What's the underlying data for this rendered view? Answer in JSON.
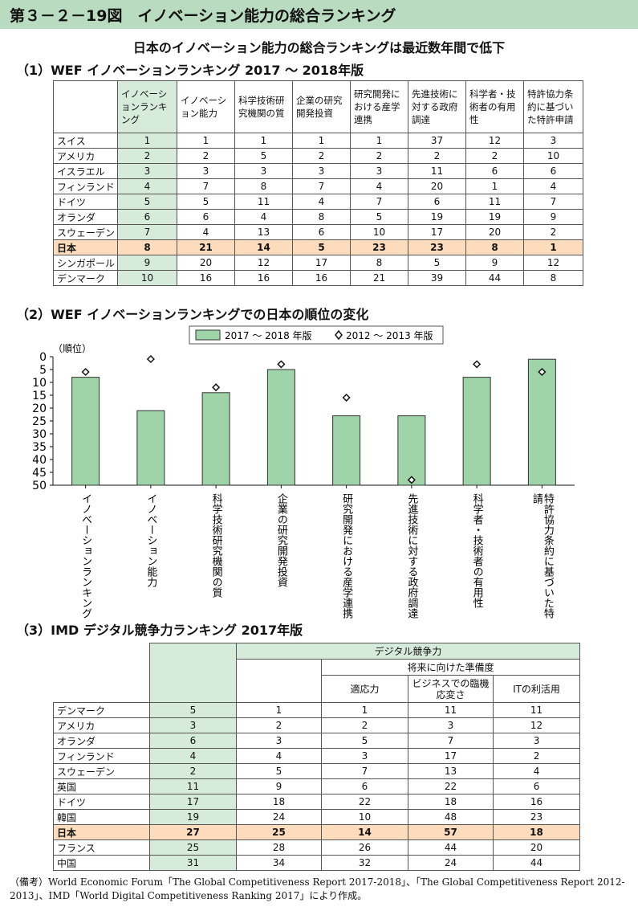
{
  "header": {
    "title": "第３－２－19図　イノベーション能力の総合ランキング"
  },
  "subtitle": "日本のイノベーション能力の総合ランキングは最近数年間で低下",
  "section1": {
    "title": "（1）WEF イノベーションランキング 2017 ～ 2018年版",
    "columns": [
      "イノベーションランキング",
      "イノベーション能力",
      "科学技術研究機関の質",
      "企業の研究開発投資",
      "研究開発における産学連携",
      "先進技術に対する政府調達",
      "科学者・技術者の有用性",
      "特許協力条約に基づいた特許申請"
    ],
    "rows": [
      {
        "name": "スイス",
        "values": [
          "1",
          "1",
          "1",
          "1",
          "1",
          "37",
          "12",
          "3"
        ]
      },
      {
        "name": "アメリカ",
        "values": [
          "2",
          "2",
          "5",
          "2",
          "2",
          "2",
          "2",
          "10"
        ]
      },
      {
        "name": "イスラエル",
        "values": [
          "3",
          "3",
          "3",
          "3",
          "3",
          "11",
          "6",
          "6"
        ]
      },
      {
        "name": "フィンランド",
        "values": [
          "4",
          "7",
          "8",
          "7",
          "4",
          "20",
          "1",
          "4"
        ]
      },
      {
        "name": "ドイツ",
        "values": [
          "5",
          "5",
          "11",
          "4",
          "7",
          "6",
          "11",
          "7"
        ]
      },
      {
        "name": "オランダ",
        "values": [
          "6",
          "6",
          "4",
          "8",
          "5",
          "19",
          "19",
          "9"
        ]
      },
      {
        "name": "スウェーデン",
        "values": [
          "7",
          "4",
          "13",
          "6",
          "10",
          "17",
          "20",
          "2"
        ]
      },
      {
        "name": "日本",
        "values": [
          "8",
          "21",
          "14",
          "5",
          "23",
          "23",
          "8",
          "1"
        ],
        "highlight": true
      },
      {
        "name": "シンガポール",
        "values": [
          "9",
          "20",
          "12",
          "17",
          "8",
          "5",
          "9",
          "12"
        ]
      },
      {
        "name": "デンマーク",
        "values": [
          "10",
          "16",
          "16",
          "16",
          "21",
          "39",
          "44",
          "8"
        ]
      }
    ]
  },
  "section2": {
    "title": "（2）WEF イノベーションランキングでの日本の順位の変化"
  },
  "chart_data": {
    "type": "bar",
    "ylabel": "（順位）",
    "ylim": [
      0,
      50
    ],
    "yticks": [
      "0",
      "5",
      "10",
      "15",
      "20",
      "25",
      "30",
      "35",
      "40",
      "45",
      "50"
    ],
    "categories": [
      "イノベーションランキング",
      "イノベーション能力",
      "科学技術研究機関の質",
      "企業の研究開発投資",
      "研究開発における産学連携",
      "先進技術に対する政府調達",
      "科学者・技術者の有用性",
      "特許協力条約に基づいた特許申請"
    ],
    "series": [
      {
        "name": "2017 ～ 2018 年版",
        "kind": "bar",
        "color": "#9fd3a8",
        "values": [
          8,
          21,
          14,
          5,
          23,
          23,
          8,
          1
        ]
      },
      {
        "name": "2012 ～ 2013 年版",
        "kind": "marker",
        "values": [
          5,
          0,
          11,
          2,
          15,
          47,
          2,
          5
        ]
      }
    ],
    "legend_position": "top-center",
    "grid": false,
    "y_inverted": true
  },
  "section3": {
    "title": "（3）IMD デジタル競争力ランキング 2017年版",
    "header_top": "デジタル競争力",
    "header_mid": "将来に向けた準備度",
    "subcols": [
      "適応力",
      "ビジネスでの臨機応変さ",
      "ITの利活用"
    ],
    "rows": [
      {
        "name": "デンマーク",
        "values": [
          "5",
          "1",
          "1",
          "11",
          "11"
        ]
      },
      {
        "name": "アメリカ",
        "values": [
          "3",
          "2",
          "2",
          "3",
          "12"
        ]
      },
      {
        "name": "オランダ",
        "values": [
          "6",
          "3",
          "5",
          "7",
          "3"
        ]
      },
      {
        "name": "フィンランド",
        "values": [
          "4",
          "4",
          "3",
          "17",
          "2"
        ]
      },
      {
        "name": "スウェーデン",
        "values": [
          "2",
          "5",
          "7",
          "13",
          "4"
        ]
      },
      {
        "name": "英国",
        "values": [
          "11",
          "9",
          "6",
          "22",
          "6"
        ]
      },
      {
        "name": "ドイツ",
        "values": [
          "17",
          "18",
          "22",
          "18",
          "16"
        ]
      },
      {
        "name": "韓国",
        "values": [
          "19",
          "24",
          "10",
          "48",
          "23"
        ]
      },
      {
        "name": "日本",
        "values": [
          "27",
          "25",
          "14",
          "57",
          "18"
        ],
        "highlight": true
      },
      {
        "name": "フランス",
        "values": [
          "25",
          "28",
          "26",
          "44",
          "20"
        ]
      },
      {
        "name": "中国",
        "values": [
          "31",
          "34",
          "32",
          "24",
          "44"
        ]
      }
    ]
  },
  "footnote": "（備考）World Economic Forum「The Global Competitiveness Report 2017-2018」、「The Global Competitiveness Report 2012-2013」、IMD「World Digital Competitiveness Ranking 2017」により作成。"
}
